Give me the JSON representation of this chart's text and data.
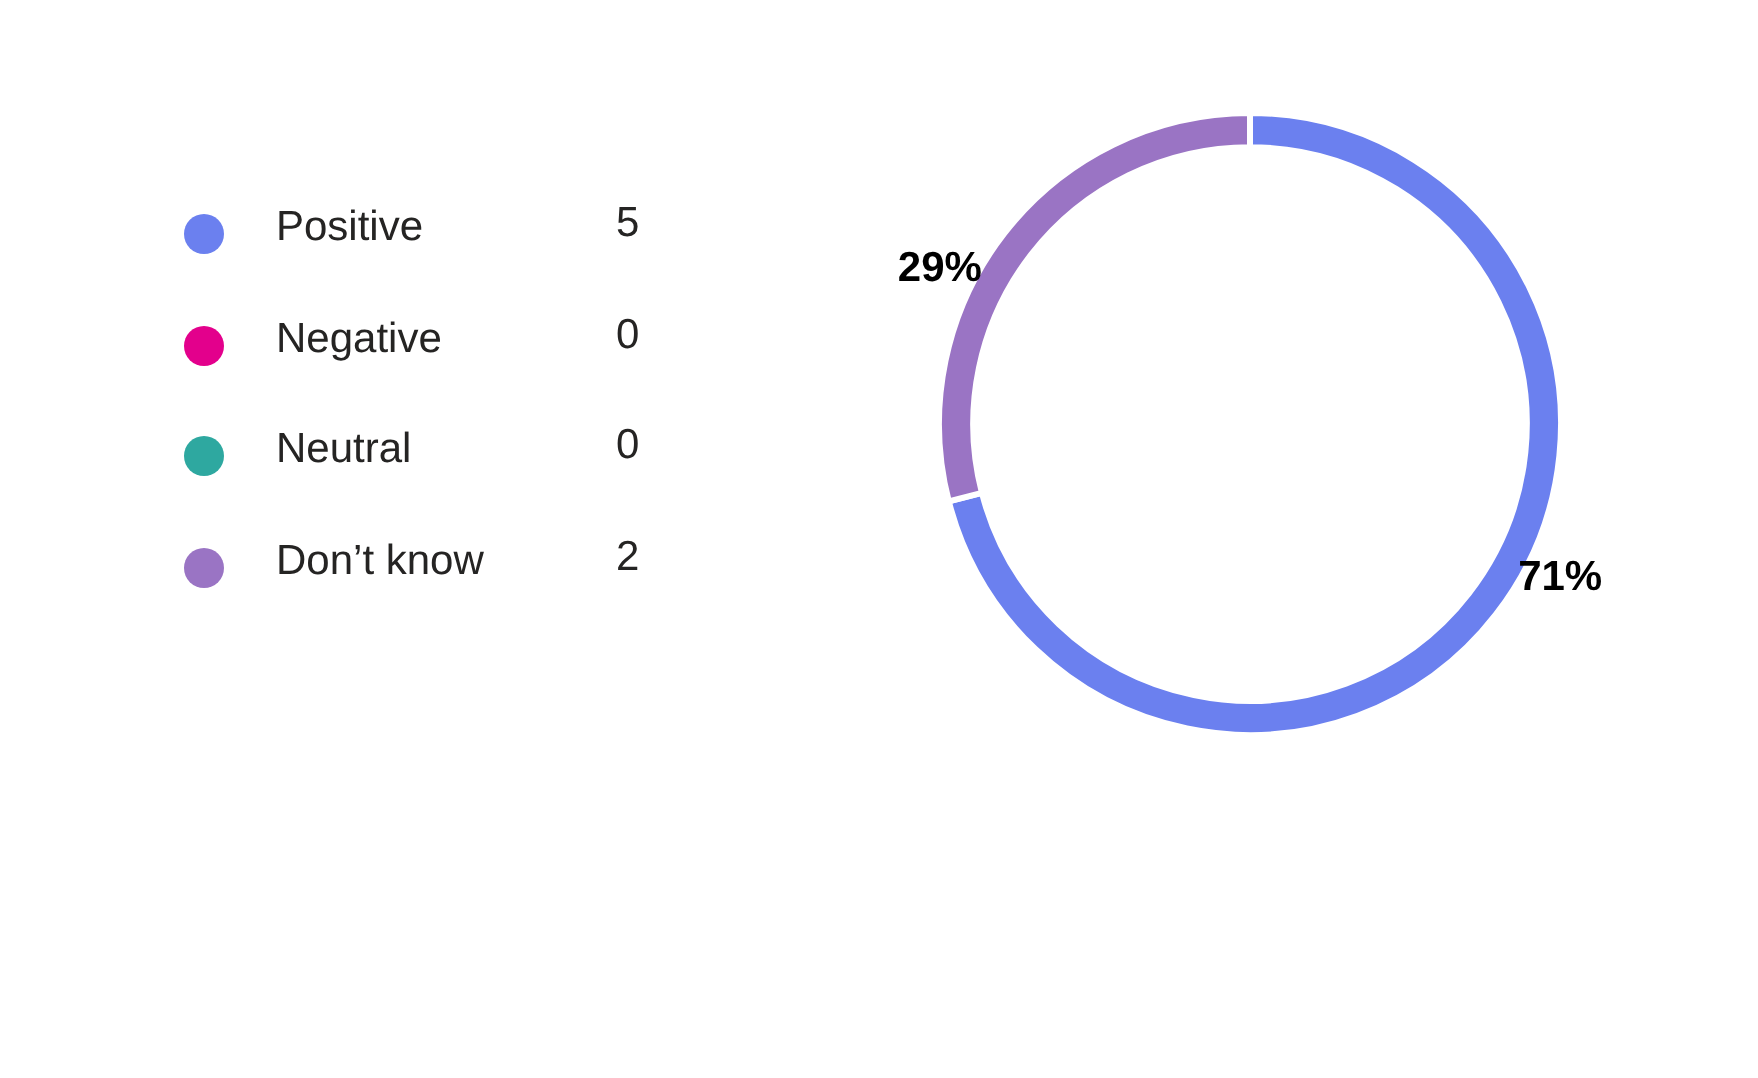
{
  "chart_data": {
    "type": "donut",
    "categories": [
      "Positive",
      "Negative",
      "Neutral",
      "Don’t know"
    ],
    "values": [
      71,
      0,
      0,
      29
    ],
    "colors": [
      "#6b80ef",
      "#e3008c",
      "#2ea8a0",
      "#9a74c4"
    ],
    "value_labels": [
      "71%",
      null,
      null,
      "29%"
    ],
    "annotations": [
      "5",
      "0",
      "0",
      "2"
    ],
    "legend": "left"
  }
}
